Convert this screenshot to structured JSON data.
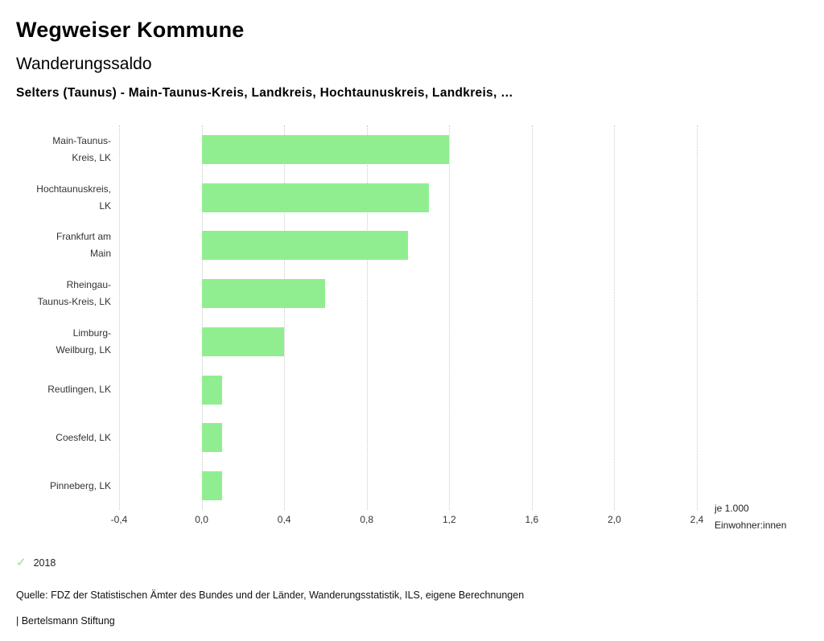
{
  "header": {
    "title": "Wegweiser Kommune",
    "subtitle": "Wanderungssaldo",
    "location": "Selters (Taunus) - Main-Taunus-Kreis, Landkreis, Hochtaunuskreis, Landkreis, …"
  },
  "chart_data": {
    "type": "bar",
    "orientation": "horizontal",
    "title": "Wanderungssaldo",
    "categories": [
      "Main-Taunus-Kreis, LK",
      "Hochtaunuskreis, LK",
      "Frankfurt am Main",
      "Rheingau-Taunus-Kreis, LK",
      "Limburg-Weilburg, LK",
      "Reutlingen, LK",
      "Coesfeld, LK",
      "Pinneberg, LK"
    ],
    "values": [
      1.2,
      1.1,
      1.0,
      0.6,
      0.4,
      0.1,
      0.1,
      0.1
    ],
    "series_name": "2018",
    "xlim": [
      -0.4,
      2.4
    ],
    "x_ticks": [
      -0.4,
      0.0,
      0.4,
      0.8,
      1.2,
      1.6,
      2.0,
      2.4
    ],
    "x_tick_labels": [
      "-0,4",
      "0,0",
      "0,4",
      "0,8",
      "1,2",
      "1,6",
      "2,0",
      "2,4"
    ],
    "x_axis_label": "je 1.000 Einwohner:innen",
    "bar_color": "#90ee90",
    "grid": "dotted-vertical",
    "legend_position": "bottom-left"
  },
  "axis_note": {
    "line1": "je 1.000",
    "line2": "Einwohner:innen"
  },
  "legend": {
    "check_icon": "✓",
    "year": "2018",
    "check_color": "#8fe08f"
  },
  "footer": {
    "source": "Quelle: FDZ der Statistischen Ämter des Bundes und der Länder, Wanderungsstatistik, ILS, eigene Berechnungen",
    "attribution": "| Bertelsmann Stiftung"
  }
}
